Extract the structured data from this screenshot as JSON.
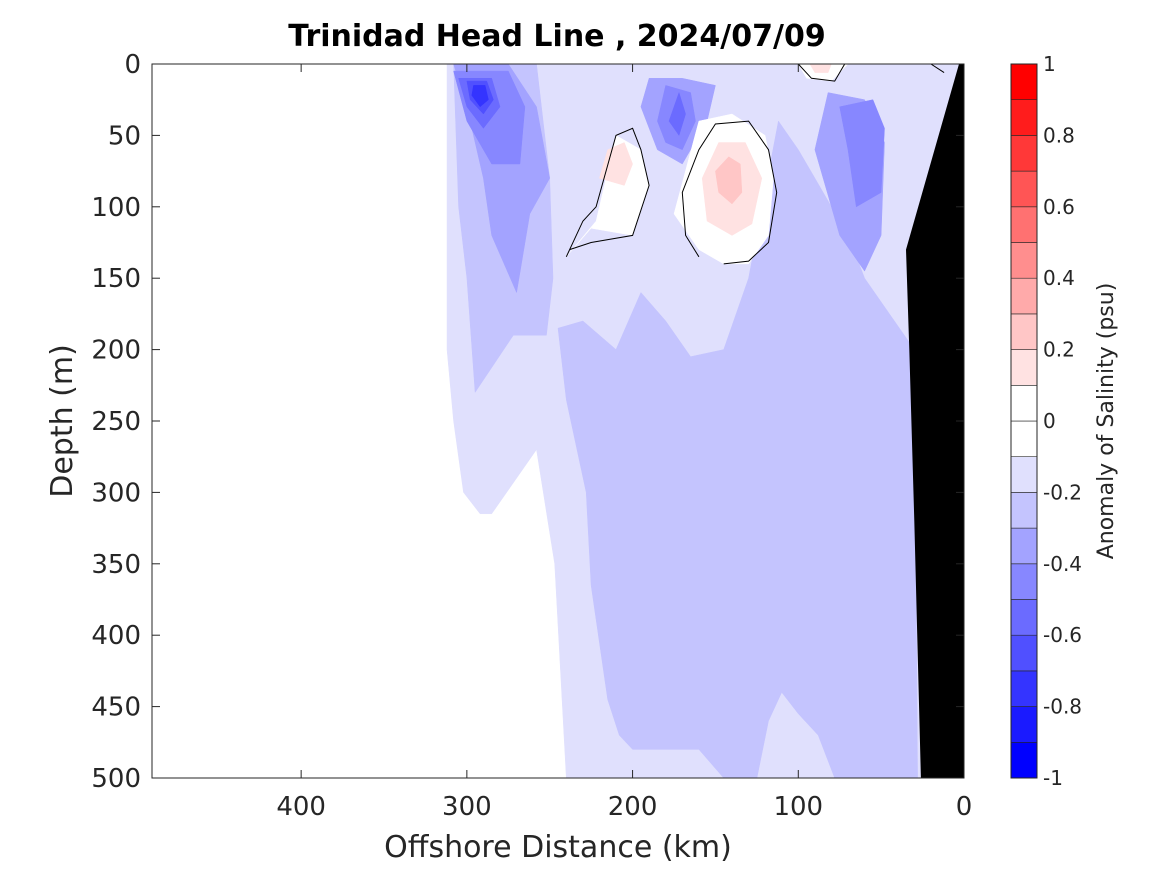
{
  "chart_data": {
    "type": "heatmap",
    "title": "Trinidad Head Line , 2024/07/09",
    "xlabel": "Offshore Distance (km)",
    "ylabel": "Depth (m)",
    "xlim": [
      490,
      0
    ],
    "ylim": [
      0,
      500
    ],
    "x_reversed": true,
    "y_reversed": true,
    "xticks": [
      400,
      300,
      200,
      100,
      0
    ],
    "yticks": [
      0,
      50,
      100,
      150,
      200,
      250,
      300,
      350,
      400,
      450,
      500
    ],
    "colorbar": {
      "label": "Anomaly of Salinity (psu)",
      "range": [
        -1,
        1
      ],
      "step": 0.1,
      "ticks": [
        1,
        0.8,
        0.6,
        0.4,
        0.2,
        0,
        -0.2,
        -0.4,
        -0.6,
        -0.8,
        -1
      ],
      "colormap": "blue-white-red",
      "colors": [
        "#0000ff",
        "#1a1aff",
        "#3434ff",
        "#5050ff",
        "#6b6bff",
        "#8787ff",
        "#a3a3ff",
        "#c4c4fe",
        "#e0e0fd",
        "#ffffff",
        "#ffffff",
        "#ffe2e2",
        "#ffc6c6",
        "#ffaaaa",
        "#ff8e8e",
        "#ff7171",
        "#ff5555",
        "#ff3838",
        "#ff1c1c",
        "#ff0000"
      ]
    },
    "regions": [
      {
        "level": -0.15,
        "polygon": [
          [
            312,
            0
          ],
          [
            0,
            0
          ],
          [
            0,
            500
          ],
          [
            240,
            500
          ],
          [
            247,
            350
          ],
          [
            258,
            270
          ],
          [
            285,
            315
          ],
          [
            292,
            315
          ],
          [
            302,
            300
          ],
          [
            308,
            250
          ],
          [
            312,
            200
          ]
        ]
      },
      {
        "level": -0.25,
        "polygon": [
          [
            252,
            190
          ],
          [
            272,
            190
          ],
          [
            295,
            230
          ],
          [
            300,
            150
          ],
          [
            305,
            100
          ],
          [
            308,
            0
          ],
          [
            258,
            0
          ],
          [
            250,
            80
          ],
          [
            248,
            150
          ]
        ]
      },
      {
        "level": -0.25,
        "polygon": [
          [
            210,
            200
          ],
          [
            230,
            180
          ],
          [
            245,
            185
          ],
          [
            240,
            235
          ],
          [
            228,
            300
          ],
          [
            225,
            365
          ],
          [
            215,
            445
          ],
          [
            208,
            470
          ],
          [
            200,
            480
          ],
          [
            160,
            480
          ],
          [
            145,
            500
          ],
          [
            125,
            500
          ],
          [
            118,
            460
          ],
          [
            110,
            440
          ],
          [
            100,
            455
          ],
          [
            88,
            470
          ],
          [
            78,
            500
          ],
          [
            28,
            500
          ],
          [
            30,
            200
          ],
          [
            60,
            150
          ],
          [
            70,
            120
          ],
          [
            90,
            80
          ],
          [
            100,
            60
          ],
          [
            112,
            40
          ],
          [
            130,
            150
          ],
          [
            145,
            200
          ],
          [
            165,
            205
          ],
          [
            180,
            180
          ],
          [
            195,
            160
          ]
        ]
      },
      {
        "level": -0.35,
        "polygon": [
          [
            270,
            160
          ],
          [
            285,
            120
          ],
          [
            290,
            80
          ],
          [
            300,
            30
          ],
          [
            308,
            0
          ],
          [
            275,
            0
          ],
          [
            258,
            30
          ],
          [
            250,
            80
          ],
          [
            262,
            105
          ]
        ]
      },
      {
        "level": -0.35,
        "polygon": [
          [
            195,
            30
          ],
          [
            185,
            60
          ],
          [
            170,
            70
          ],
          [
            155,
            40
          ],
          [
            150,
            15
          ],
          [
            170,
            10
          ],
          [
            190,
            10
          ]
        ]
      },
      {
        "level": -0.35,
        "polygon": [
          [
            60,
            145
          ],
          [
            75,
            120
          ],
          [
            90,
            60
          ],
          [
            82,
            20
          ],
          [
            60,
            25
          ],
          [
            48,
            55
          ],
          [
            50,
            120
          ]
        ]
      },
      {
        "level": -0.45,
        "polygon": [
          [
            285,
            70
          ],
          [
            300,
            40
          ],
          [
            308,
            5
          ],
          [
            275,
            5
          ],
          [
            265,
            30
          ],
          [
            268,
            70
          ]
        ]
      },
      {
        "level": -0.45,
        "polygon": [
          [
            185,
            40
          ],
          [
            180,
            55
          ],
          [
            170,
            60
          ],
          [
            162,
            40
          ],
          [
            165,
            20
          ],
          [
            180,
            15
          ]
        ]
      },
      {
        "level": -0.45,
        "polygon": [
          [
            65,
            100
          ],
          [
            70,
            60
          ],
          [
            75,
            30
          ],
          [
            55,
            25
          ],
          [
            48,
            45
          ],
          [
            50,
            90
          ]
        ]
      },
      {
        "level": -0.55,
        "polygon": [
          [
            290,
            45
          ],
          [
            300,
            30
          ],
          [
            305,
            10
          ],
          [
            285,
            10
          ],
          [
            280,
            30
          ]
        ]
      },
      {
        "level": -0.55,
        "polygon": [
          [
            178,
            40
          ],
          [
            172,
            50
          ],
          [
            168,
            35
          ],
          [
            172,
            20
          ]
        ]
      },
      {
        "level": -0.65,
        "polygon": [
          [
            290,
            35
          ],
          [
            298,
            25
          ],
          [
            300,
            12
          ],
          [
            288,
            12
          ],
          [
            284,
            25
          ]
        ]
      },
      {
        "level": -0.75,
        "polygon": [
          [
            292,
            30
          ],
          [
            297,
            22
          ],
          [
            296,
            15
          ],
          [
            289,
            15
          ],
          [
            287,
            25
          ]
        ]
      },
      {
        "level": 0.05,
        "polygon": [
          [
            240,
            135
          ],
          [
            222,
            110
          ],
          [
            210,
            50
          ],
          [
            195,
            60
          ],
          [
            190,
            85
          ],
          [
            200,
            120
          ],
          [
            225,
            115
          ]
        ]
      },
      {
        "level": 0.05,
        "polygon": [
          [
            160,
            130
          ],
          [
            175,
            105
          ],
          [
            160,
            40
          ],
          [
            140,
            35
          ],
          [
            120,
            50
          ],
          [
            115,
            80
          ],
          [
            118,
            120
          ],
          [
            130,
            140
          ],
          [
            145,
            140
          ]
        ]
      },
      {
        "level": 0.05,
        "polygon": [
          [
            100,
            0
          ],
          [
            95,
            10
          ],
          [
            80,
            12
          ],
          [
            70,
            0
          ]
        ]
      },
      {
        "level": 0.15,
        "polygon": [
          [
            220,
            80
          ],
          [
            215,
            60
          ],
          [
            205,
            55
          ],
          [
            200,
            70
          ],
          [
            205,
            85
          ]
        ]
      },
      {
        "level": 0.15,
        "polygon": [
          [
            155,
            110
          ],
          [
            158,
            80
          ],
          [
            148,
            55
          ],
          [
            132,
            55
          ],
          [
            122,
            80
          ],
          [
            128,
            112
          ],
          [
            140,
            120
          ]
        ]
      },
      {
        "level": 0.15,
        "polygon": [
          [
            93,
            0
          ],
          [
            90,
            6
          ],
          [
            82,
            6
          ],
          [
            80,
            0
          ]
        ]
      },
      {
        "level": 0.25,
        "polygon": [
          [
            148,
            90
          ],
          [
            150,
            75
          ],
          [
            142,
            65
          ],
          [
            135,
            70
          ],
          [
            134,
            90
          ],
          [
            140,
            98
          ]
        ]
      }
    ],
    "contours_zero": [
      [
        [
          240,
          135
        ],
        [
          230,
          110
        ],
        [
          222,
          100
        ],
        [
          210,
          50
        ],
        [
          200,
          45
        ],
        [
          195,
          60
        ],
        [
          190,
          85
        ],
        [
          200,
          120
        ],
        [
          225,
          125
        ],
        [
          238,
          130
        ]
      ],
      [
        [
          145,
          140
        ],
        [
          130,
          138
        ],
        [
          118,
          125
        ],
        [
          113,
          90
        ],
        [
          118,
          60
        ],
        [
          130,
          40
        ],
        [
          150,
          42
        ],
        [
          160,
          60
        ],
        [
          170,
          90
        ],
        [
          168,
          120
        ],
        [
          160,
          135
        ]
      ],
      [
        [
          100,
          0
        ],
        [
          92,
          10
        ],
        [
          78,
          12
        ],
        [
          72,
          0
        ]
      ],
      [
        [
          20,
          0
        ],
        [
          12,
          6
        ]
      ]
    ],
    "seafloor": [
      [
        0,
        0
      ],
      [
        0,
        500
      ],
      [
        26,
        500
      ],
      [
        30,
        320
      ],
      [
        33,
        200
      ],
      [
        35,
        130
      ],
      [
        3,
        0
      ]
    ]
  }
}
